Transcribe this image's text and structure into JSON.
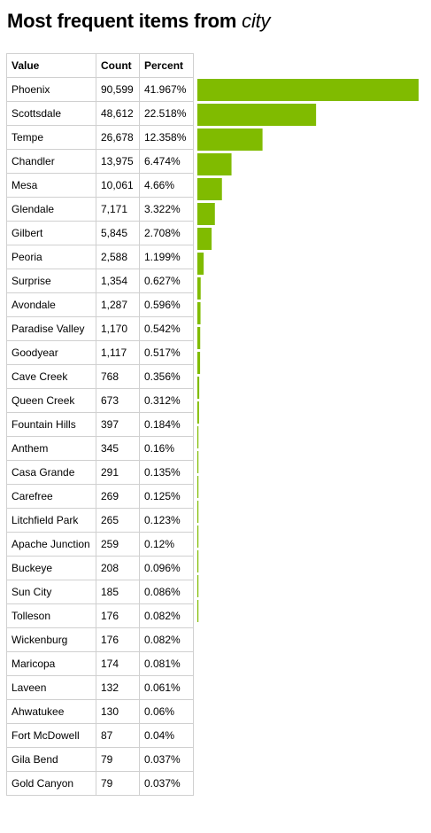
{
  "title_prefix": "Most frequent items from",
  "title_field": "city",
  "table": {
    "headers": {
      "value": "Value",
      "count": "Count",
      "percent": "Percent"
    }
  },
  "chart_data": {
    "type": "bar",
    "orientation": "horizontal",
    "colors": {
      "bar": "#80bb00"
    },
    "rows": [
      {
        "value": "Phoenix",
        "count": "90,599",
        "percent": "41.967%",
        "pct": 41.967,
        "bar": true
      },
      {
        "value": "Scottsdale",
        "count": "48,612",
        "percent": "22.518%",
        "pct": 22.518,
        "bar": true
      },
      {
        "value": "Tempe",
        "count": "26,678",
        "percent": "12.358%",
        "pct": 12.358,
        "bar": true
      },
      {
        "value": "Chandler",
        "count": "13,975",
        "percent": "6.474%",
        "pct": 6.474,
        "bar": true
      },
      {
        "value": "Mesa",
        "count": "10,061",
        "percent": "4.66%",
        "pct": 4.66,
        "bar": true
      },
      {
        "value": "Glendale",
        "count": "7,171",
        "percent": "3.322%",
        "pct": 3.322,
        "bar": true
      },
      {
        "value": "Gilbert",
        "count": "5,845",
        "percent": "2.708%",
        "pct": 2.708,
        "bar": true
      },
      {
        "value": "Peoria",
        "count": "2,588",
        "percent": "1.199%",
        "pct": 1.199,
        "bar": true
      },
      {
        "value": "Surprise",
        "count": "1,354",
        "percent": "0.627%",
        "pct": 0.627,
        "bar": true
      },
      {
        "value": "Avondale",
        "count": "1,287",
        "percent": "0.596%",
        "pct": 0.596,
        "bar": true
      },
      {
        "value": "Paradise Valley",
        "count": "1,170",
        "percent": "0.542%",
        "pct": 0.542,
        "bar": true
      },
      {
        "value": "Goodyear",
        "count": "1,117",
        "percent": "0.517%",
        "pct": 0.517,
        "bar": true
      },
      {
        "value": "Cave Creek",
        "count": "768",
        "percent": "0.356%",
        "pct": 0.356,
        "bar": true
      },
      {
        "value": "Queen Creek",
        "count": "673",
        "percent": "0.312%",
        "pct": 0.312,
        "bar": true
      },
      {
        "value": "Fountain Hills",
        "count": "397",
        "percent": "0.184%",
        "pct": 0.184,
        "bar": true
      },
      {
        "value": "Anthem",
        "count": "345",
        "percent": "0.16%",
        "pct": 0.16,
        "bar": true
      },
      {
        "value": "Casa Grande",
        "count": "291",
        "percent": "0.135%",
        "pct": 0.135,
        "bar": true
      },
      {
        "value": "Carefree",
        "count": "269",
        "percent": "0.125%",
        "pct": 0.125,
        "bar": true
      },
      {
        "value": "Litchfield Park",
        "count": "265",
        "percent": "0.123%",
        "pct": 0.123,
        "bar": true
      },
      {
        "value": "Apache Junction",
        "count": "259",
        "percent": "0.12%",
        "pct": 0.12,
        "bar": true
      },
      {
        "value": "Buckeye",
        "count": "208",
        "percent": "0.096%",
        "pct": 0.096,
        "bar": true
      },
      {
        "value": "Sun City",
        "count": "185",
        "percent": "0.086%",
        "pct": 0.086,
        "bar": true
      },
      {
        "value": "Tolleson",
        "count": "176",
        "percent": "0.082%",
        "pct": 0.082,
        "bar": false
      },
      {
        "value": "Wickenburg",
        "count": "176",
        "percent": "0.082%",
        "pct": 0.082,
        "bar": false
      },
      {
        "value": "Maricopa",
        "count": "174",
        "percent": "0.081%",
        "pct": 0.081,
        "bar": false
      },
      {
        "value": "Laveen",
        "count": "132",
        "percent": "0.061%",
        "pct": 0.061,
        "bar": false
      },
      {
        "value": "Ahwatukee",
        "count": "130",
        "percent": "0.06%",
        "pct": 0.06,
        "bar": false
      },
      {
        "value": "Fort McDowell",
        "count": "87",
        "percent": "0.04%",
        "pct": 0.04,
        "bar": false
      },
      {
        "value": "Gila Bend",
        "count": "79",
        "percent": "0.037%",
        "pct": 0.037,
        "bar": false
      },
      {
        "value": "Gold Canyon",
        "count": "79",
        "percent": "0.037%",
        "pct": 0.037,
        "bar": false
      }
    ]
  }
}
